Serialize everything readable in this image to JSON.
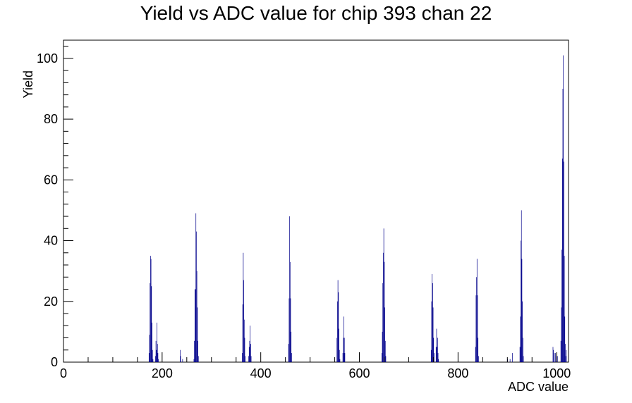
{
  "chart_data": {
    "type": "bar",
    "title": "Yield vs ADC value for chip 393 chan 22",
    "xlabel": "ADC value",
    "ylabel": "Yield",
    "xlim": [
      0,
      1024
    ],
    "ylim": [
      0,
      106
    ],
    "x_ticks": [
      0,
      200,
      400,
      600,
      800,
      1000
    ],
    "y_ticks": [
      0,
      20,
      40,
      60,
      80,
      100
    ],
    "grid": false,
    "legend": "none",
    "series": [
      {
        "color": "#00008b",
        "bins": [
          [
            173,
            3
          ],
          [
            174,
            9
          ],
          [
            175,
            26
          ],
          [
            176,
            35
          ],
          [
            177,
            34
          ],
          [
            178,
            25
          ],
          [
            179,
            13
          ],
          [
            180,
            4
          ],
          [
            181,
            1
          ],
          [
            186,
            2
          ],
          [
            187,
            7
          ],
          [
            188,
            4
          ],
          [
            189,
            13
          ],
          [
            190,
            6
          ],
          [
            191,
            3
          ],
          [
            192,
            1
          ],
          [
            236,
            4
          ],
          [
            237,
            2
          ],
          [
            241,
            1
          ],
          [
            264,
            1
          ],
          [
            265,
            7
          ],
          [
            266,
            24
          ],
          [
            267,
            24
          ],
          [
            268,
            49
          ],
          [
            269,
            43
          ],
          [
            270,
            30
          ],
          [
            271,
            18
          ],
          [
            272,
            7
          ],
          [
            273,
            2
          ],
          [
            362,
            3
          ],
          [
            363,
            19
          ],
          [
            364,
            36
          ],
          [
            365,
            27
          ],
          [
            366,
            14
          ],
          [
            367,
            8
          ],
          [
            368,
            2
          ],
          [
            375,
            2
          ],
          [
            376,
            5
          ],
          [
            377,
            7
          ],
          [
            378,
            12
          ],
          [
            379,
            6
          ],
          [
            380,
            2
          ],
          [
            456,
            6
          ],
          [
            457,
            21
          ],
          [
            458,
            48
          ],
          [
            459,
            33
          ],
          [
            460,
            21
          ],
          [
            461,
            10
          ],
          [
            462,
            3
          ],
          [
            554,
            8
          ],
          [
            555,
            20
          ],
          [
            556,
            27
          ],
          [
            557,
            23
          ],
          [
            558,
            11
          ],
          [
            559,
            4
          ],
          [
            560,
            1
          ],
          [
            566,
            3
          ],
          [
            567,
            8
          ],
          [
            568,
            15
          ],
          [
            569,
            8
          ],
          [
            570,
            3
          ],
          [
            645,
            3
          ],
          [
            646,
            10
          ],
          [
            647,
            26
          ],
          [
            648,
            36
          ],
          [
            649,
            44
          ],
          [
            650,
            33
          ],
          [
            651,
            18
          ],
          [
            652,
            7
          ],
          [
            653,
            2
          ],
          [
            745,
            4
          ],
          [
            746,
            20
          ],
          [
            747,
            29
          ],
          [
            748,
            26
          ],
          [
            749,
            18
          ],
          [
            750,
            8
          ],
          [
            751,
            3
          ],
          [
            755,
            5
          ],
          [
            756,
            11
          ],
          [
            757,
            5
          ],
          [
            758,
            8
          ],
          [
            759,
            3
          ],
          [
            760,
            1
          ],
          [
            835,
            5
          ],
          [
            836,
            22
          ],
          [
            837,
            28
          ],
          [
            838,
            34
          ],
          [
            839,
            22
          ],
          [
            840,
            8
          ],
          [
            841,
            2
          ],
          [
            900,
            1
          ],
          [
            905,
            1
          ],
          [
            910,
            3
          ],
          [
            925,
            5
          ],
          [
            926,
            15
          ],
          [
            927,
            40
          ],
          [
            928,
            50
          ],
          [
            929,
            34
          ],
          [
            930,
            20
          ],
          [
            931,
            8
          ],
          [
            932,
            2
          ],
          [
            992,
            5
          ],
          [
            993,
            4
          ],
          [
            995,
            3
          ],
          [
            997,
            3
          ],
          [
            999,
            2
          ],
          [
            1001,
            2
          ],
          [
            1008,
            7
          ],
          [
            1009,
            18
          ],
          [
            1010,
            37
          ],
          [
            1011,
            67
          ],
          [
            1012,
            90
          ],
          [
            1013,
            101
          ],
          [
            1014,
            66
          ],
          [
            1015,
            35
          ],
          [
            1016,
            15
          ],
          [
            1017,
            6
          ],
          [
            1018,
            2
          ],
          [
            1019,
            4
          ]
        ]
      }
    ]
  }
}
